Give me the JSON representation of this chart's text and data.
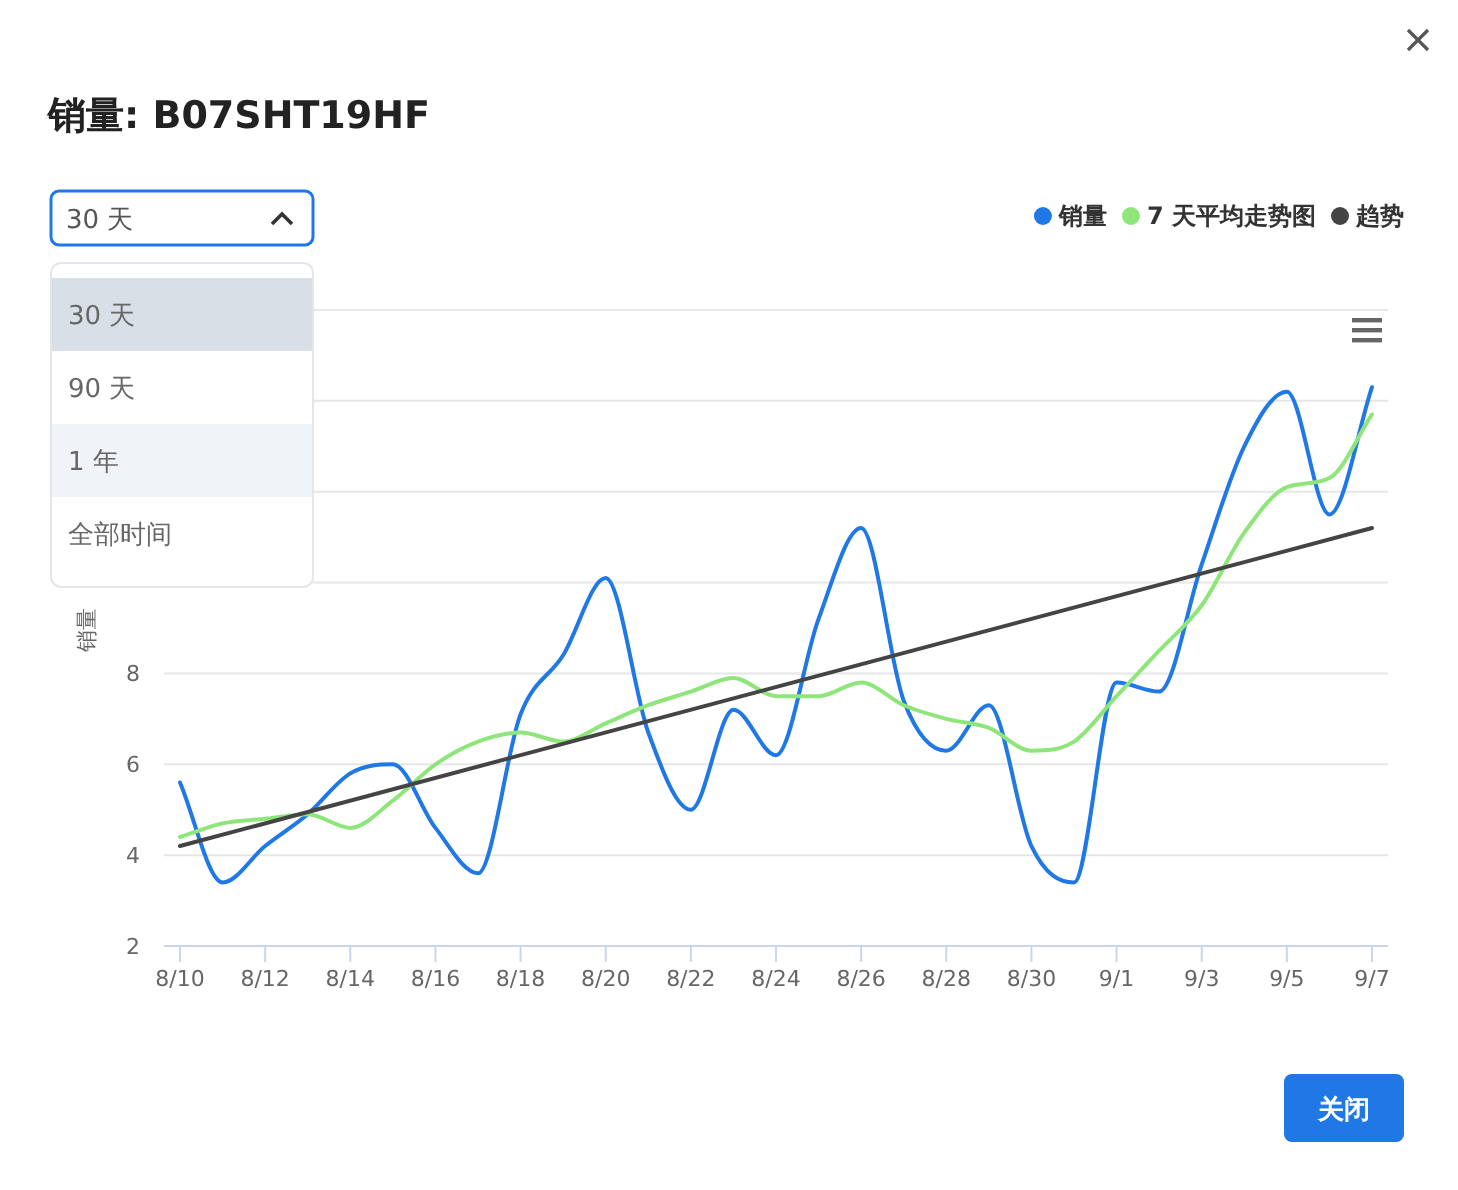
{
  "chart_data": {
    "type": "line",
    "title": "销量: B07SHT19HF",
    "ylabel": "销量",
    "categories": [
      "8/10",
      null,
      "8/12",
      null,
      "8/14",
      null,
      "8/16",
      null,
      "8/18",
      null,
      "8/20",
      null,
      "8/22",
      null,
      "8/24",
      null,
      "8/26",
      null,
      "8/28",
      null,
      "8/30",
      null,
      "9/1",
      null,
      "9/3",
      null,
      "9/5",
      null,
      "9/7"
    ],
    "series": [
      {
        "name": "销量",
        "color": "#1f78e6",
        "values": [
          5.6,
          3.4,
          4.2,
          4.9,
          5.8,
          6.0,
          4.6,
          3.6,
          7.1,
          8.4,
          10.1,
          6.7,
          5.0,
          7.2,
          6.2,
          9.2,
          11.2,
          7.4,
          6.3,
          7.3,
          4.2,
          3.4,
          7.8,
          7.6,
          10.4,
          13.0,
          14.2,
          11.5,
          14.3
        ]
      },
      {
        "name": "7 天平均走势图",
        "color": "#8ee67a",
        "values": [
          4.4,
          4.7,
          4.8,
          4.9,
          4.6,
          5.2,
          6.0,
          6.5,
          6.7,
          6.5,
          6.9,
          7.3,
          7.6,
          7.9,
          7.5,
          7.5,
          7.8,
          7.3,
          7.0,
          6.8,
          6.3,
          6.5,
          7.5,
          8.5,
          9.5,
          11.1,
          12.1,
          12.3,
          13.7
        ]
      },
      {
        "name": "趋势",
        "color": "#444444",
        "x": [
          "8/10",
          "9/7"
        ],
        "values": [
          4.2,
          11.2
        ]
      }
    ],
    "ylim": [
      2,
      16
    ],
    "yticks": [
      2,
      4,
      6,
      8,
      {
        "value": 10,
        "label": null
      },
      {
        "value": 12,
        "label": null
      },
      {
        "value": 14,
        "label": null
      },
      {
        "value": 16,
        "label": null
      }
    ],
    "grid": "y",
    "legend": "top right",
    "marker": "none",
    "line_style": "solid",
    "annotations": [
      "30 天",
      "30 天",
      "90 天",
      "1 年",
      "全部时间",
      "关闭"
    ]
  }
}
